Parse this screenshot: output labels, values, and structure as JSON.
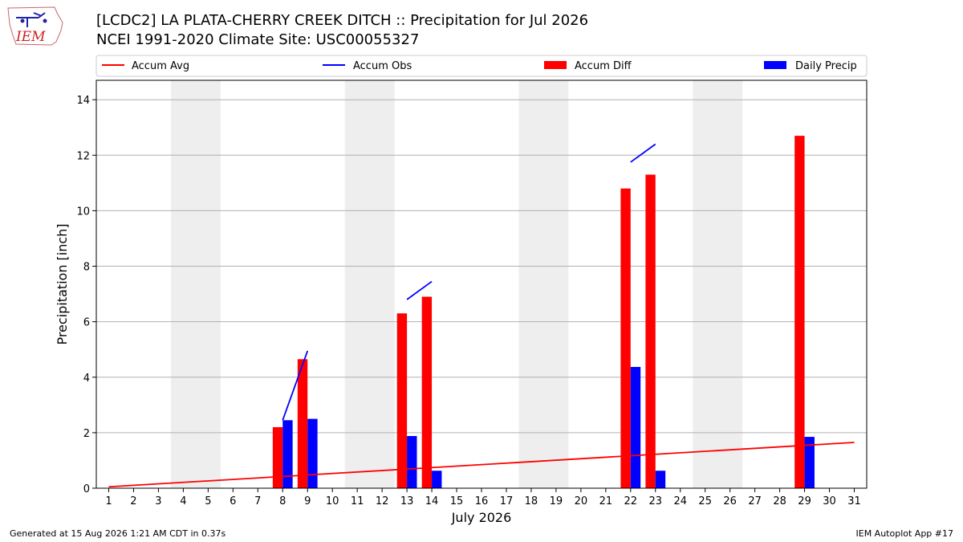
{
  "header": {
    "title_line1": "[LCDC2] LA PLATA-CHERRY CREEK DITCH :: Precipitation for Jul 2026",
    "title_line2": "NCEI 1991-2020 Climate Site: USC00055327",
    "logo_text": "IEM"
  },
  "footer": {
    "generated": "Generated at 15 Aug 2026 1:21 AM CDT in 0.37s",
    "app": "IEM Autoplot App #17"
  },
  "colors": {
    "accum_avg": "#ff0000",
    "accum_obs": "#0000ff",
    "accum_diff": "#ff0000",
    "daily_precip": "#0000ff",
    "weekend_band": "#eeeeee",
    "grid": "#b0b0b0"
  },
  "chart_data": {
    "type": "bar",
    "xlabel": "July 2026",
    "ylabel": "Precipitation [inch]",
    "xlim": [
      0.5,
      31.5
    ],
    "ylim": [
      0,
      14.7
    ],
    "yticks": [
      0,
      2,
      4,
      6,
      8,
      10,
      12,
      14
    ],
    "x": [
      1,
      2,
      3,
      4,
      5,
      6,
      7,
      8,
      9,
      10,
      11,
      12,
      13,
      14,
      15,
      16,
      17,
      18,
      19,
      20,
      21,
      22,
      23,
      24,
      25,
      26,
      27,
      28,
      29,
      30,
      31
    ],
    "grid": "horizontal",
    "legend_position": "top",
    "shaded_days": [
      [
        3.5,
        5.5
      ],
      [
        10.5,
        12.5
      ],
      [
        17.5,
        19.5
      ],
      [
        24.5,
        26.5
      ]
    ],
    "series": [
      {
        "name": "Accum Avg",
        "kind": "line",
        "x": [
          1,
          31
        ],
        "values": [
          0.05,
          1.65
        ]
      },
      {
        "name": "Accum Obs",
        "kind": "line",
        "segments": [
          {
            "x": [
              8,
              9
            ],
            "values": [
              2.45,
              4.95
            ]
          },
          {
            "x": [
              13,
              14
            ],
            "values": [
              6.8,
              7.45
            ]
          },
          {
            "x": [
              22,
              23
            ],
            "values": [
              11.75,
              12.4
            ]
          }
        ]
      },
      {
        "name": "Accum Diff",
        "kind": "bar",
        "x": [
          8,
          9,
          13,
          14,
          22,
          23,
          29
        ],
        "values": [
          2.2,
          4.65,
          6.3,
          6.9,
          10.8,
          11.3,
          12.7
        ]
      },
      {
        "name": "Daily Precip",
        "kind": "bar",
        "x": [
          8,
          9,
          13,
          14,
          22,
          23,
          29
        ],
        "values": [
          2.45,
          2.5,
          1.88,
          0.63,
          4.37,
          0.63,
          1.85
        ]
      }
    ]
  }
}
